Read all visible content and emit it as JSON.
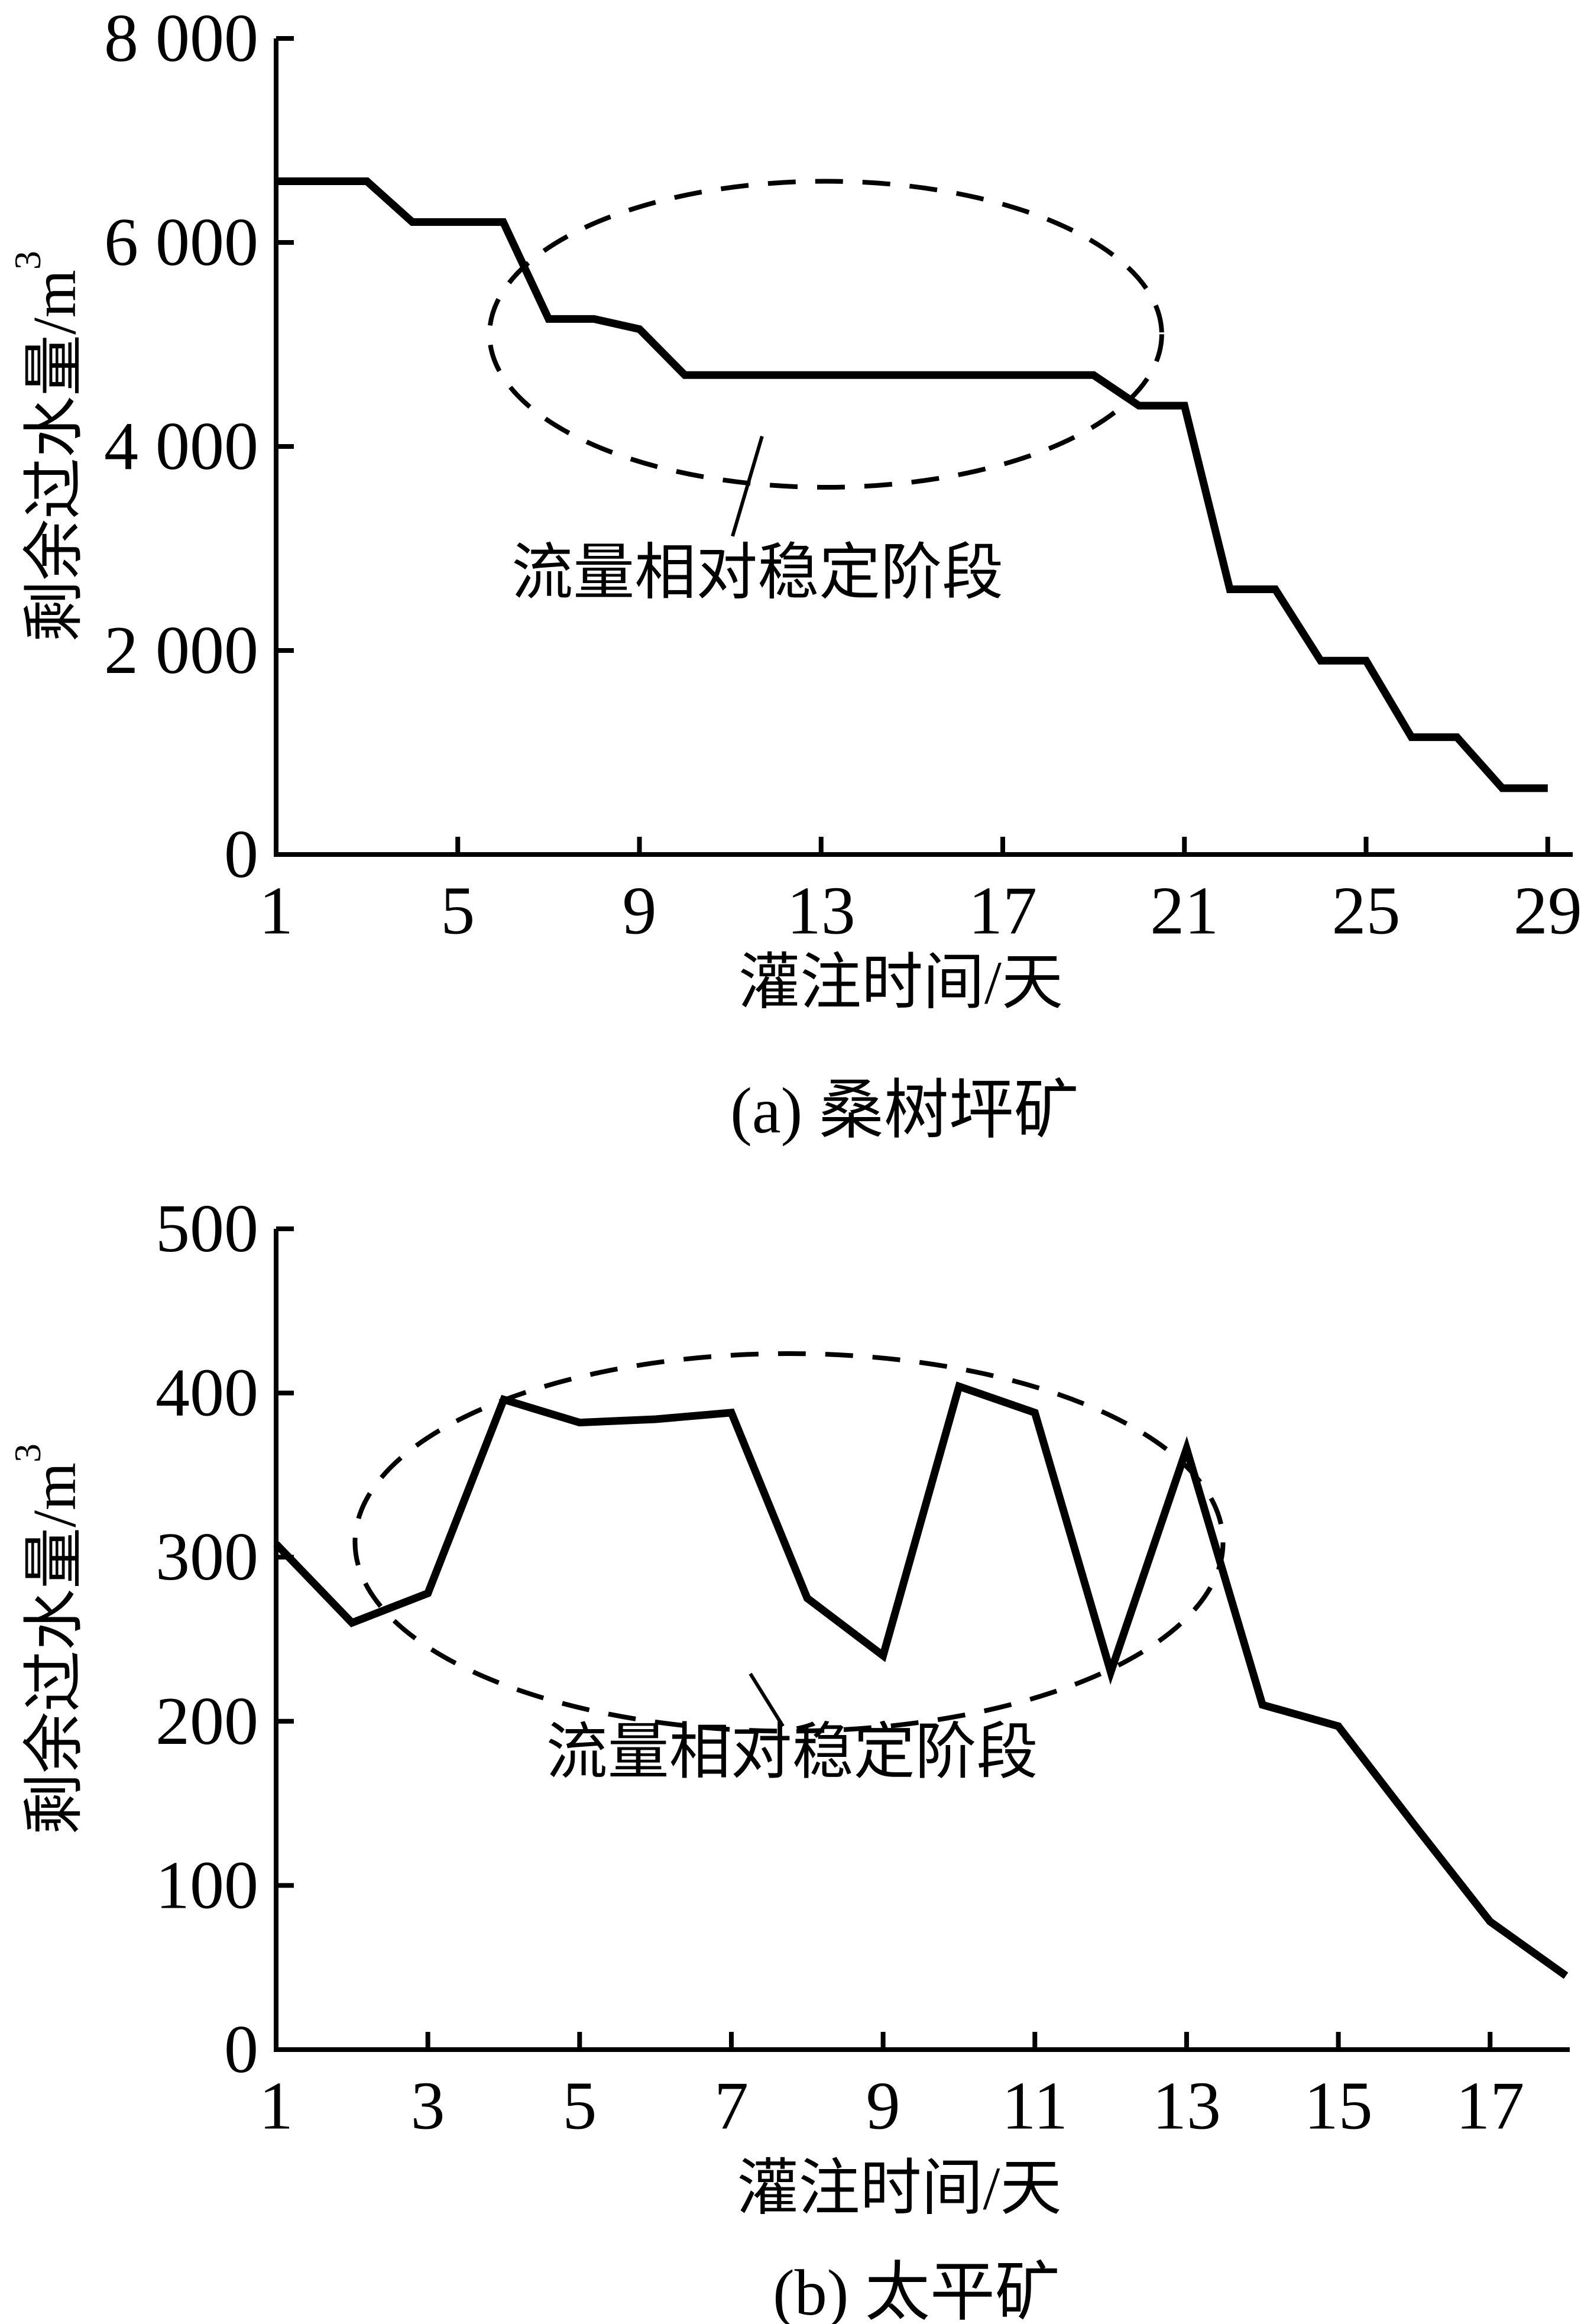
{
  "figure": {
    "background": "#ffffff",
    "ink_color": "#000000",
    "annotation_label": "流量相对稳定阶段"
  },
  "chart_data": [
    {
      "id": "a",
      "type": "line",
      "caption": "(a) 桑树坪矿",
      "xlabel": "灌注时间/天",
      "ylabel_main": "剩余过水量/m",
      "ylabel_sup": "3",
      "xlim": [
        1,
        29.55
      ],
      "ylim": [
        0,
        8000
      ],
      "x_ticks": [
        1,
        5,
        9,
        13,
        17,
        21,
        25,
        29
      ],
      "x_tick_labels": [
        "1",
        "5",
        "9",
        "13",
        "17",
        "21",
        "25",
        "29"
      ],
      "y_ticks": [
        0,
        2000,
        4000,
        6000,
        8000
      ],
      "y_tick_labels": [
        "0",
        "2 000",
        "4 000",
        "6 000",
        "8 000"
      ],
      "x": [
        1,
        2,
        3,
        4,
        5,
        6,
        7,
        8,
        9,
        10,
        11,
        12,
        13,
        14,
        15,
        16,
        17,
        18,
        19,
        20,
        21,
        22,
        23,
        24,
        25,
        26,
        27,
        28,
        29
      ],
      "y": [
        6600,
        6600,
        6600,
        6200,
        6200,
        6200,
        5250,
        5250,
        5150,
        4700,
        4700,
        4700,
        4700,
        4700,
        4700,
        4700,
        4700,
        4700,
        4700,
        4400,
        4400,
        2600,
        2600,
        1900,
        1900,
        1150,
        1150,
        650,
        650
      ],
      "annotation": {
        "text": "流量相对稳定阶段",
        "x": 11.6,
        "y": 2760
      },
      "ellipse": {
        "cx": 13.1,
        "cy": 5100,
        "rx": 7.4,
        "ry": 1500
      },
      "leader": {
        "x1": 11.7,
        "y1": 4100,
        "x2": 11.05,
        "y2": 3120
      }
    },
    {
      "id": "b",
      "type": "line",
      "caption": "(b) 太平矿",
      "xlabel": "灌注时间/天",
      "ylabel_main": "剩余过水量/m",
      "ylabel_sup": "3",
      "xlim": [
        1,
        18.05
      ],
      "ylim": [
        0,
        500
      ],
      "x_ticks": [
        1,
        3,
        5,
        7,
        9,
        11,
        13,
        15,
        17
      ],
      "x_tick_labels": [
        "1",
        "3",
        "5",
        "7",
        "9",
        "11",
        "13",
        "15",
        "17"
      ],
      "y_ticks": [
        0,
        100,
        200,
        300,
        400,
        500
      ],
      "y_tick_labels": [
        "0",
        "100",
        "200",
        "300",
        "400",
        "500"
      ],
      "x": [
        1,
        2,
        3,
        4,
        5,
        6,
        7,
        8,
        9,
        10,
        11,
        12,
        13,
        14,
        15,
        16,
        17,
        18
      ],
      "y": [
        308,
        260,
        278,
        396,
        382,
        384,
        388,
        275,
        240,
        404,
        388,
        230,
        366,
        210,
        197,
        137,
        78,
        45
      ],
      "annotation": {
        "text": "流量相对稳定阶段",
        "x": 7.8,
        "y": 181
      },
      "ellipse": {
        "cx": 7.76,
        "cy": 309,
        "rx": 5.72,
        "ry": 115
      },
      "leader": {
        "x1": 7.25,
        "y1": 229,
        "x2": 7.68,
        "y2": 197
      }
    }
  ]
}
